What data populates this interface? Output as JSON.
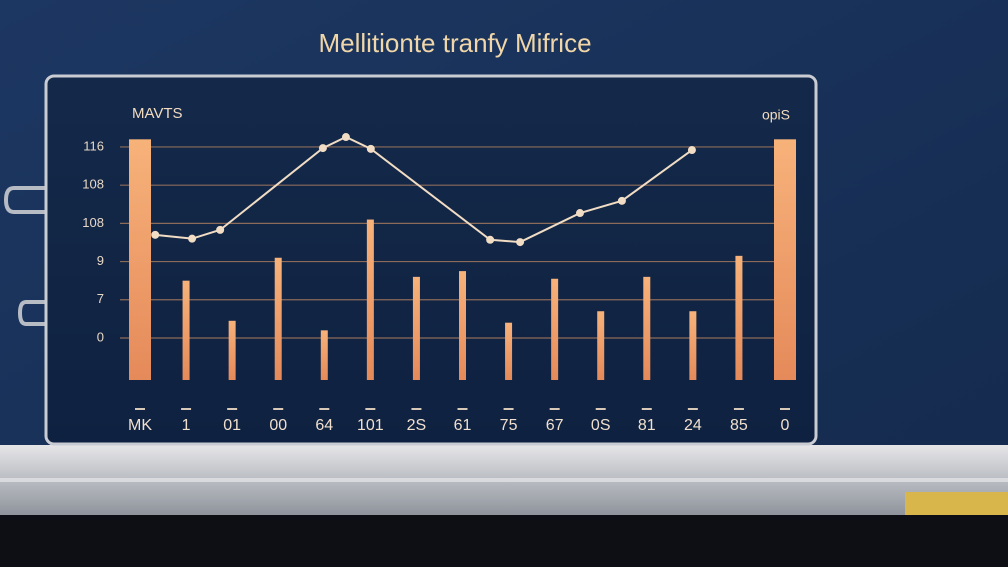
{
  "chart_data": {
    "type": "bar",
    "title": "Mellitionte tranfy Mifrice",
    "y_label": "MAVTS",
    "y2_label": "opiS",
    "categories": [
      "MK",
      "1",
      "01",
      "00",
      "64",
      "101",
      "2S",
      "61",
      "75",
      "67",
      "0S",
      "81",
      "24",
      "85",
      "0"
    ],
    "values": [
      5.2,
      1.5,
      0.45,
      2.1,
      0.2,
      3.1,
      1.6,
      1.75,
      0.4,
      1.55,
      0.7,
      1.6,
      0.7,
      2.15,
      5.2
    ],
    "color": "#f2a06e",
    "line": {
      "color": "#f1dcc4",
      "x": [
        0.33,
        1.13,
        1.74,
        3.97,
        4.47,
        5.01,
        7.6,
        8.25,
        9.55,
        10.46,
        11.98
      ],
      "values": [
        2.7,
        2.6,
        2.83,
        4.97,
        5.26,
        4.95,
        2.57,
        2.51,
        3.27,
        3.59,
        4.92
      ]
    },
    "ylim": [
      -1.1,
      5.3
    ],
    "yticks": [
      {
        "value": 0,
        "label": "0"
      },
      {
        "value": 1,
        "label": "7"
      },
      {
        "value": 2,
        "label": "9"
      },
      {
        "value": 3,
        "label": "108"
      },
      {
        "value": 4,
        "label": "108"
      },
      {
        "value": 5,
        "label": "116"
      }
    ],
    "grid": true
  }
}
